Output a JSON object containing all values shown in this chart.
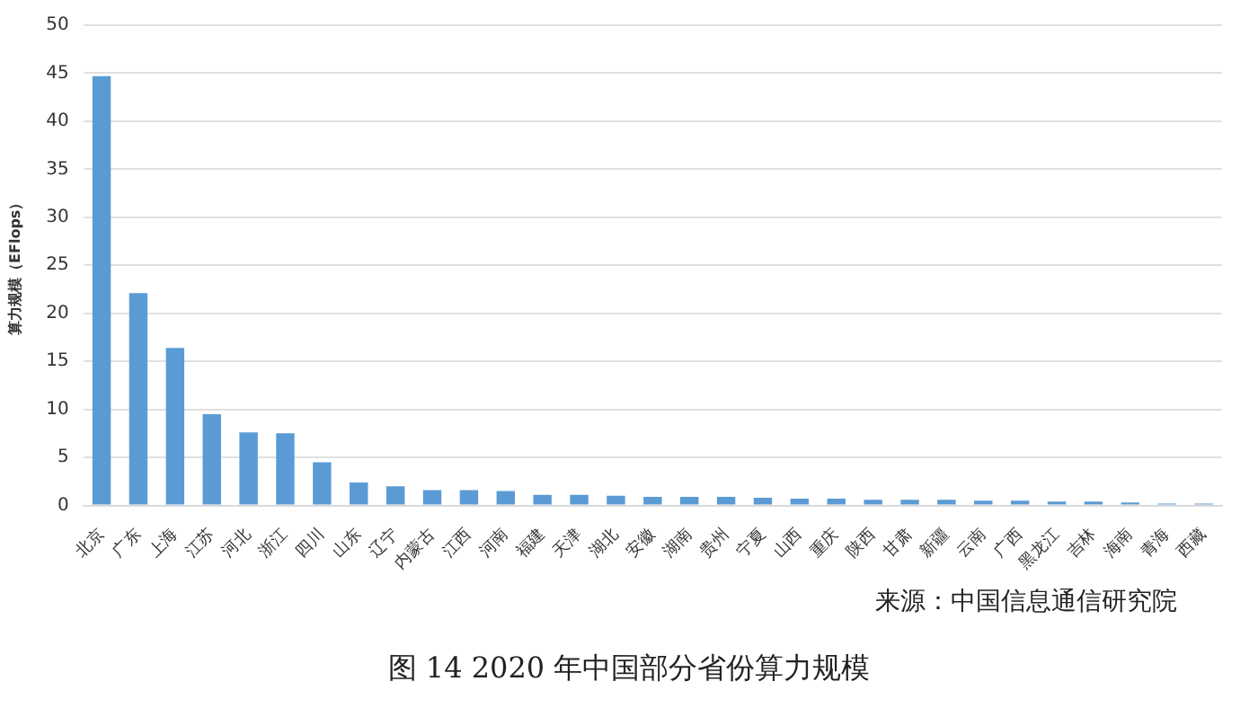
{
  "chart_data": {
    "type": "bar",
    "title": "图 14 2020 年中国部分省份算力规模",
    "ylabel": "算力规模（EFlops）",
    "annotations": [
      "来源：中国信息通信研究院"
    ],
    "categories": [
      "北京",
      "广东",
      "上海",
      "江苏",
      "河北",
      "浙江",
      "四川",
      "山东",
      "辽宁",
      "内蒙古",
      "江西",
      "河南",
      "福建",
      "天津",
      "湖北",
      "安徽",
      "湖南",
      "贵州",
      "宁夏",
      "山西",
      "重庆",
      "陕西",
      "甘肃",
      "新疆",
      "云南",
      "广西",
      "黑龙江",
      "吉林",
      "海南",
      "青海",
      "西藏"
    ],
    "values": [
      44.7,
      22.1,
      16.4,
      9.5,
      7.6,
      7.5,
      4.5,
      2.4,
      2.0,
      1.6,
      1.6,
      1.5,
      1.1,
      1.1,
      1.0,
      0.9,
      0.9,
      0.9,
      0.8,
      0.7,
      0.7,
      0.6,
      0.6,
      0.6,
      0.5,
      0.5,
      0.4,
      0.4,
      0.3,
      0.2,
      0.2
    ],
    "color": "#5b9bd5",
    "ylim": [
      0,
      50
    ],
    "yticks": [
      0,
      5,
      10,
      15,
      20,
      25,
      30,
      35,
      40,
      45,
      50
    ],
    "grid": "y"
  }
}
